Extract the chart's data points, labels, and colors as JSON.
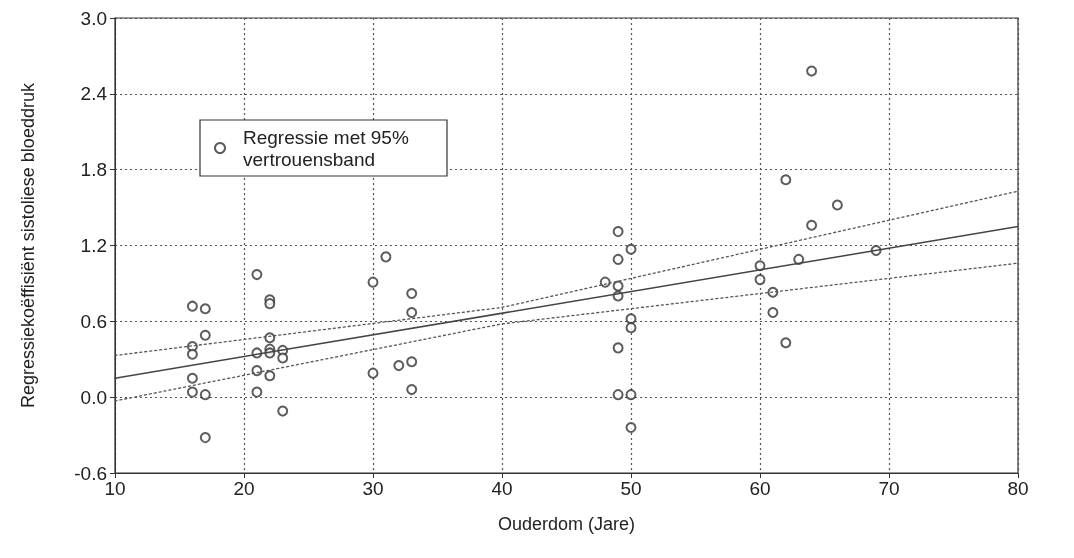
{
  "chart_data": {
    "type": "scatter",
    "xlabel": "Ouderdom (Jare)",
    "ylabel": "Regressiekoëffisiënt sistoliese bloeddruk",
    "xlim": [
      10,
      80
    ],
    "xticks": [
      10,
      20,
      30,
      40,
      50,
      60,
      70,
      80
    ],
    "ylim": [
      -0.6,
      3.0
    ],
    "yticks": [
      {
        "value": -0.6,
        "label": "-0.6"
      },
      {
        "value": 0,
        "label": "0.0"
      },
      {
        "value": 0.6,
        "label": "0.6"
      },
      {
        "value": 1.2,
        "label": "1.2"
      },
      {
        "value": 1.8,
        "label": "1.8"
      },
      {
        "value": 2.4,
        "label": "2.4"
      },
      {
        "value": 3.0,
        "label": "3.0"
      }
    ],
    "grid": true,
    "legend": "top left",
    "series": [
      {
        "name": "Regressie met 95% vertrouensband",
        "color": "#333333",
        "marker": "circle",
        "x": [
          16,
          16,
          16,
          16,
          16,
          17,
          17,
          17,
          17,
          21,
          21,
          21,
          21,
          22,
          22,
          22,
          22,
          22,
          22,
          23,
          23,
          23,
          30,
          30,
          31,
          32,
          33,
          33,
          33,
          33,
          48,
          49,
          49,
          49,
          49,
          49,
          49,
          50,
          50,
          50,
          50,
          50,
          60,
          60,
          61,
          61,
          62,
          62,
          63,
          64,
          64,
          66,
          69
        ],
        "values": [
          0.72,
          0.4,
          0.34,
          0.15,
          0.04,
          0.7,
          0.49,
          0.02,
          -0.32,
          0.97,
          0.35,
          0.21,
          0.04,
          0.77,
          0.74,
          0.47,
          0.38,
          0.35,
          0.17,
          0.37,
          0.31,
          -0.11,
          0.91,
          0.19,
          1.11,
          0.25,
          0.82,
          0.67,
          0.28,
          0.06,
          0.91,
          1.31,
          1.09,
          0.88,
          0.8,
          0.39,
          0.02,
          1.17,
          0.62,
          0.55,
          0.02,
          -0.24,
          1.04,
          0.93,
          0.83,
          0.67,
          1.72,
          0.43,
          1.09,
          2.58,
          1.36,
          1.52,
          1.16
        ]
      },
      {
        "type": "line",
        "color": "#444444",
        "marker": "none",
        "line_style": "solid",
        "x": [
          10,
          80
        ],
        "values": [
          0.15,
          1.35
        ]
      },
      {
        "type": "line",
        "color": "#555555",
        "marker": "none",
        "line_style": "dotted",
        "x": [
          10,
          40,
          80
        ],
        "values": [
          0.33,
          0.71,
          1.63
        ]
      },
      {
        "type": "line",
        "color": "#555555",
        "marker": "none",
        "line_style": "dotted",
        "x": [
          10,
          40,
          80
        ],
        "values": [
          -0.03,
          0.58,
          1.06
        ]
      }
    ]
  }
}
